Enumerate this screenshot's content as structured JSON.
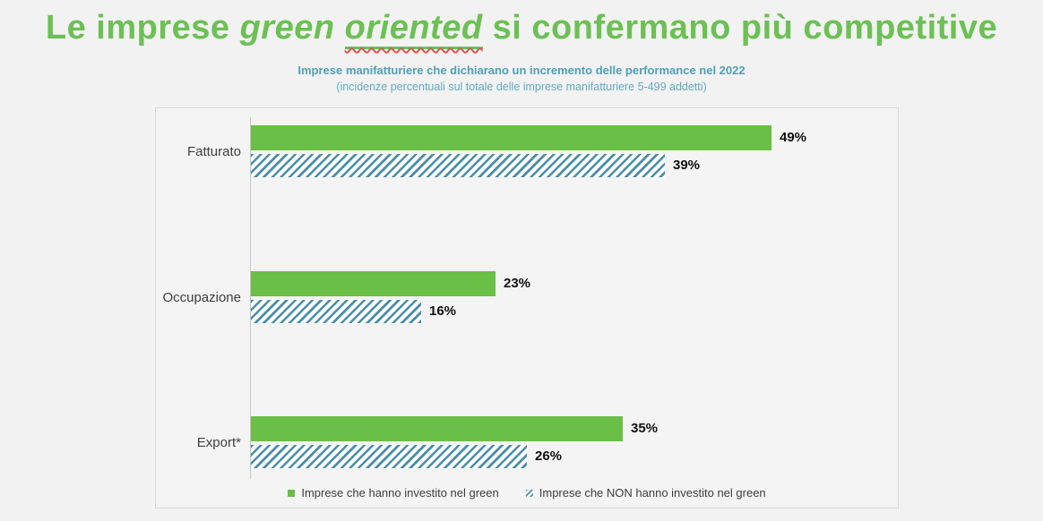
{
  "title": {
    "part1": "Le imprese ",
    "part2_italic": "green ",
    "part3_italic_underlined": "oriented",
    "part4": " si confermano più competitive"
  },
  "subtitle": {
    "line1": "Imprese manifatturiere che dichiarano un incremento delle performance nel 2022",
    "line2": "(incidenze percentuali sul totale delle imprese manifatturiere 5-499 addetti)"
  },
  "colors": {
    "background": "#f2f2f2",
    "chart_bg": "#f4f4f4",
    "chart_border": "#d9d9d9",
    "title_green": "#6cc054",
    "bar_green": "#6abf47",
    "hatch_teal": "#4a8ea9",
    "subtitle_teal": "#4f9fb8",
    "subtitle2_teal": "#64aac0",
    "axis_line": "#c6c6c6",
    "label_text": "#3d3d3d",
    "value_text": "#111111",
    "spellcheck_red": "#e05252"
  },
  "chart_data": {
    "type": "bar",
    "orientation": "horizontal",
    "title": "Le imprese green oriented si confermano più competitive",
    "subtitle": "Imprese manifatturiere che dichiarano un incremento delle performance nel 2022 (incidenze percentuali sul totale delle imprese manifatturiere 5-499 addetti)",
    "categories": [
      "Fatturato",
      "Occupazione",
      "Export*"
    ],
    "series": [
      {
        "name": "Imprese che hanno investito nel green",
        "values": [
          49,
          23,
          35
        ],
        "labels": [
          "49%",
          "23%",
          "35%"
        ],
        "style": "solid",
        "color": "#6abf47"
      },
      {
        "name": "Imprese che NON hanno investito nel green",
        "values": [
          39,
          16,
          26
        ],
        "labels": [
          "39%",
          "16%",
          "26%"
        ],
        "style": "hatched",
        "color": "#4a8ea9"
      }
    ],
    "xlim": [
      0,
      60
    ],
    "grid": false,
    "value_labels_shown": true,
    "legend_position": "bottom"
  }
}
